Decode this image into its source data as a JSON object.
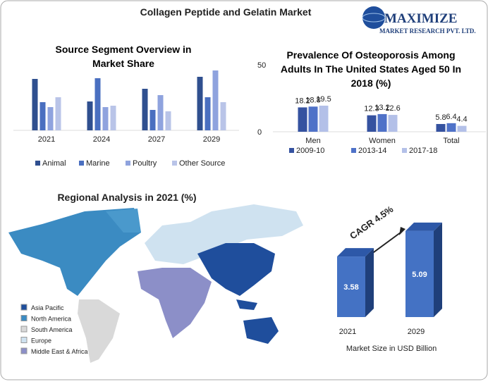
{
  "title": "Collagen Peptide and Gelatin Market",
  "logo": {
    "name": "MAXIMIZE",
    "tagline": "MARKET RESEARCH PVT. LTD."
  },
  "chart_data": [
    {
      "type": "bar",
      "title": "Source Segment Overview in Market Share",
      "categories": [
        "2021",
        "2024",
        "2027",
        "2029"
      ],
      "series": [
        {
          "name": "Animal",
          "color": "#2f4f8f",
          "values": [
            73,
            41,
            59,
            76
          ]
        },
        {
          "name": "Marine",
          "color": "#4a6fc0",
          "values": [
            40,
            74,
            29,
            47
          ]
        },
        {
          "name": "Poultry",
          "color": "#8fa3de",
          "values": [
            33,
            33,
            50,
            85
          ]
        },
        {
          "name": "Other Source",
          "color": "#b9c4e8",
          "values": [
            47,
            35,
            27,
            40
          ]
        }
      ]
    },
    {
      "type": "bar",
      "title": "Prevalence Of Osteoporosis Among Adults In The United States Aged 50 In 2018 (%)",
      "categories": [
        "Men",
        "Women",
        "Total"
      ],
      "series": [
        {
          "name": "2009-10",
          "color": "#3552a0",
          "values": [
            18.2,
            12.3,
            5.8
          ]
        },
        {
          "name": "2013-14",
          "color": "#4f72c8",
          "values": [
            18.8,
            13.2,
            6.4
          ]
        },
        {
          "name": "2017-18",
          "color": "#b3c0e8",
          "values": [
            19.5,
            12.6,
            4.4
          ]
        }
      ],
      "ylim": [
        0,
        50
      ],
      "yticks": [
        0,
        50
      ]
    },
    {
      "type": "bar3d",
      "categories": [
        "2021",
        "2029"
      ],
      "values": [
        3.58,
        5.09
      ],
      "color": "#4472c4",
      "annotation": "CAGR 4.5%",
      "xlabel": "Market Size in USD Billion"
    }
  ],
  "map": {
    "title": "Regional Analysis in 2021 (%)",
    "legend": [
      {
        "name": "Asia Pacific",
        "color": "#1f4e9c"
      },
      {
        "name": "North America",
        "color": "#3b8bc2"
      },
      {
        "name": "South America",
        "color": "#d9d9d9"
      },
      {
        "name": "Europe",
        "color": "#cfe2f0"
      },
      {
        "name": "Middle East & Africa",
        "color": "#8c8fc8"
      }
    ]
  }
}
